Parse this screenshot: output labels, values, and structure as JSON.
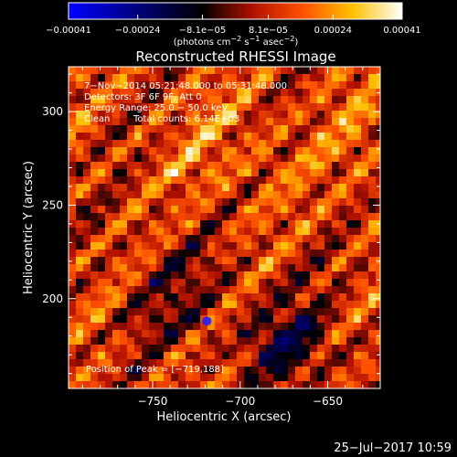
{
  "chart_data": {
    "type": "heatmap",
    "title": "Reconstructed RHESSI Image",
    "xlabel": "Heliocentric X (arcsec)",
    "ylabel": "Heliocentric Y (arcsec)",
    "x_ticks": [
      -750,
      -700,
      -650
    ],
    "x_tick_labels": [
      "−750",
      "−700",
      "−650"
    ],
    "y_ticks": [
      200,
      250,
      300
    ],
    "y_tick_labels": [
      "200",
      "250",
      "300"
    ],
    "xlim": [
      -798,
      -620
    ],
    "ylim": [
      152,
      324
    ],
    "colorbar": {
      "min": -0.00041,
      "max": 0.00041,
      "ticks": [
        -0.00041,
        -0.00024,
        -8.1e-05,
        8.1e-05,
        0.00024,
        0.00041
      ],
      "tick_labels": [
        "−0.00041",
        "−0.00024",
        "−8.1e−05",
        "8.1e−05",
        "0.00024",
        "0.00041"
      ],
      "units_prefix": "(photons cm",
      "units_exp1": "−2",
      "units_mid1": " s",
      "units_exp2": "−1",
      "units_mid2": " asec",
      "units_exp3": "−2",
      "units_suffix": ")",
      "colormap": [
        "#0000ff",
        "#000000",
        "#b01000",
        "#ff5000",
        "#ffc000",
        "#ffffff"
      ]
    },
    "annotations": {
      "time_range": "7−Nov−2014 05:21:48.000 to 05:31:48.000",
      "detectors": "Detectors: 3F 6F 9F, Att 0",
      "energy": "Energy Range: 25.0 − 50.0 keV",
      "algorithm": "Clean",
      "total_counts": "Total counts: 6.14E+03",
      "peak": "Position of Peak = [−719,188]"
    },
    "peak": [
      -719,
      188
    ]
  },
  "footer": {
    "timestamp": "25−Jul−2017 10:59"
  }
}
